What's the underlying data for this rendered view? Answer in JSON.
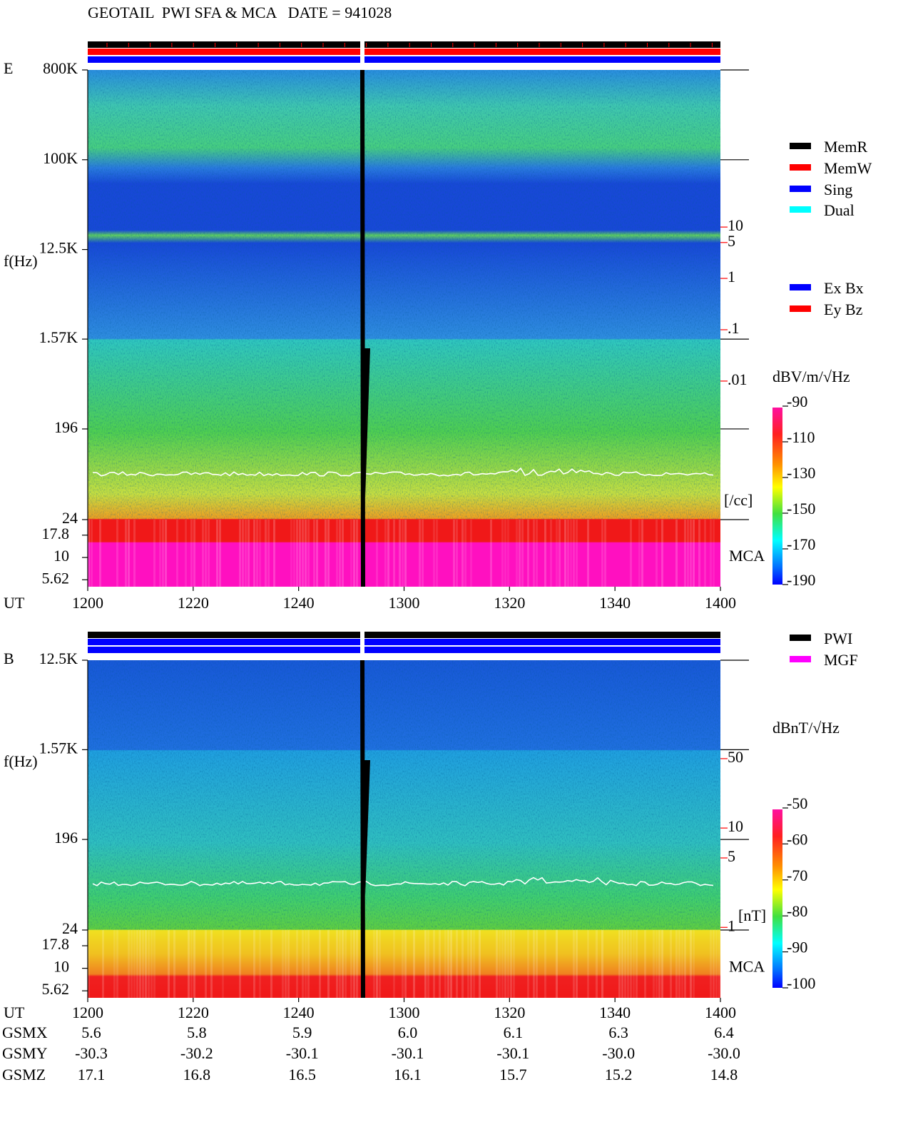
{
  "title": "GEOTAIL  PWI SFA & MCA   DATE = 941028",
  "chart_data": [
    {
      "type": "spectrogram",
      "panel_label": "E",
      "ylabel": "f(Hz)",
      "xlabel": "UT",
      "log_y": true,
      "ylim": [
        24,
        800000
      ],
      "yticks": [
        {
          "value": 800000,
          "label": "800K"
        },
        {
          "value": 100000,
          "label": "100K"
        },
        {
          "value": 12500,
          "label": "12.5K"
        },
        {
          "value": 1570,
          "label": "1.57K"
        },
        196,
        24
      ],
      "mca_label": "MCA",
      "mca_ylim": [
        4.7,
        26.6
      ],
      "mca_ticks": [
        17.8,
        10,
        5.62
      ],
      "xlim": [
        720,
        840
      ],
      "xticks": [
        {
          "value": 720,
          "label": "1200"
        },
        {
          "value": 740,
          "label": "1220"
        },
        {
          "value": 760,
          "label": "1240"
        },
        {
          "value": 780,
          "label": "1300"
        },
        {
          "value": 800,
          "label": "1320"
        },
        {
          "value": 820,
          "label": "1340"
        },
        {
          "value": 840,
          "label": "1400"
        }
      ],
      "y2label": "[/cc]",
      "y2color": "#ff0000",
      "y2lim": [
        2e-05,
        11500
      ],
      "y2ticks": [
        10,
        5,
        1,
        {
          "value": 0.1,
          "label": ".1"
        },
        {
          "value": 0.01,
          "label": ".01"
        }
      ],
      "legend": [
        {
          "name": "MemR",
          "color": "#000000"
        },
        {
          "name": "MemW",
          "color": "#ff0000"
        },
        {
          "name": "Sing",
          "color": "#0000ff"
        },
        {
          "name": "Dual",
          "color": "#00ffff"
        }
      ],
      "legend2": [
        {
          "name": "Ex Bx",
          "color": "#0000ff"
        },
        {
          "name": "Ey Bz",
          "color": "#ff0000"
        }
      ],
      "colorbar": {
        "label": "dBV/m/√Hz",
        "lim": [
          -190,
          -90
        ],
        "ticks": [
          -90,
          -110,
          -130,
          -150,
          -170,
          -190
        ]
      }
    },
    {
      "type": "spectrogram",
      "panel_label": "B",
      "ylabel": "f(Hz)",
      "xlabel": "UT",
      "log_y": true,
      "ylim": [
        24,
        12500
      ],
      "yticks": [
        {
          "value": 12500,
          "label": "12.5K"
        },
        {
          "value": 1570,
          "label": "1.57K"
        },
        196,
        24
      ],
      "mca_label": "MCA",
      "mca_ylim": [
        4.7,
        26.6
      ],
      "mca_ticks": [
        17.8,
        10,
        5.62
      ],
      "xlim": [
        720,
        840
      ],
      "xticks": [
        {
          "value": 720,
          "label": "1200"
        },
        {
          "value": 740,
          "label": "1220"
        },
        {
          "value": 760,
          "label": "1240"
        },
        {
          "value": 780,
          "label": "1300"
        },
        {
          "value": 800,
          "label": "1320"
        },
        {
          "value": 820,
          "label": "1340"
        },
        {
          "value": 840,
          "label": "1400"
        }
      ],
      "y2label": "[nT]",
      "y2color": "#ff0000",
      "y2lim": [
        0.94,
        490
      ],
      "y2ticks": [
        50,
        10,
        5,
        1
      ],
      "legend": [
        {
          "name": "PWI",
          "color": "#000000"
        },
        {
          "name": "MGF",
          "color": "#ff00ff"
        }
      ],
      "colorbar": {
        "label": "dBnT/√Hz",
        "lim": [
          -100,
          -50
        ],
        "ticks": [
          -50,
          -60,
          -70,
          -80,
          -90,
          -100
        ]
      }
    }
  ],
  "orbit": {
    "rows": [
      {
        "label": "GSMX",
        "cells": [
          "5.6",
          "5.8",
          "5.9",
          "6.0",
          "6.1",
          "6.3",
          "6.4"
        ]
      },
      {
        "label": "GSMY",
        "cells": [
          "-30.3",
          "-30.2",
          "-30.1",
          "-30.1",
          "-30.1",
          "-30.0",
          "-30.0"
        ]
      },
      {
        "label": "GSMZ",
        "cells": [
          "17.1",
          "16.8",
          "16.5",
          "16.1",
          "15.7",
          "15.2",
          "14.8"
        ]
      }
    ]
  }
}
